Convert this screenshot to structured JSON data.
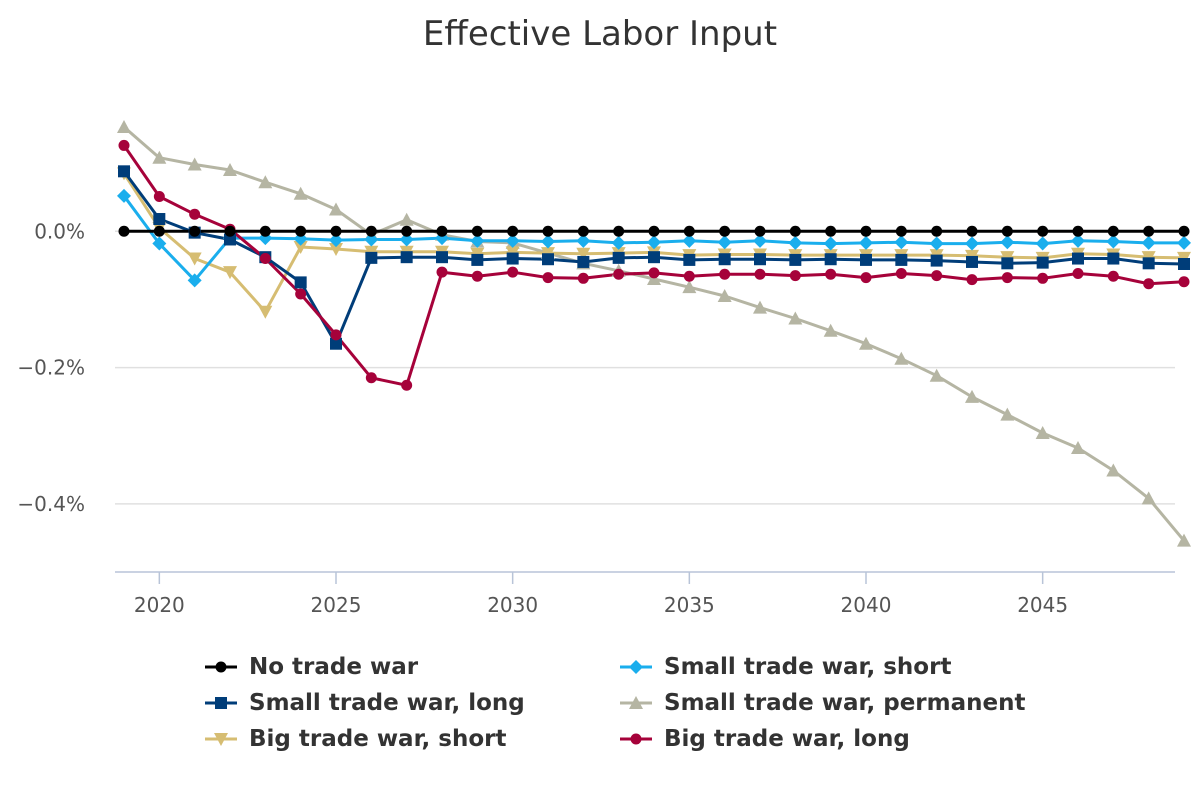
{
  "chart_data": {
    "type": "line",
    "title": "Effective Labor Input",
    "xlabel": "",
    "ylabel": "",
    "xlim": [
      2019,
      2049
    ],
    "ylim": [
      -0.5,
      0.2
    ],
    "y_ticks": [
      0.0,
      -0.2,
      -0.4
    ],
    "y_tick_labels": [
      "0.0%",
      "−0.2%",
      "−0.4%"
    ],
    "x_ticks": [
      2020,
      2025,
      2030,
      2035,
      2040,
      2045
    ],
    "x_tick_labels": [
      "2020",
      "2025",
      "2030",
      "2035",
      "2040",
      "2045"
    ],
    "x": [
      2019,
      2020,
      2021,
      2022,
      2023,
      2024,
      2025,
      2026,
      2027,
      2028,
      2029,
      2030,
      2031,
      2032,
      2033,
      2034,
      2035,
      2036,
      2037,
      2038,
      2039,
      2040,
      2041,
      2042,
      2043,
      2044,
      2045,
      2046,
      2047,
      2048,
      2049
    ],
    "series": [
      {
        "name": "No trade war",
        "color": "#000000",
        "marker": "circle",
        "values": [
          0,
          0,
          0,
          0,
          0,
          0,
          0,
          0,
          0,
          0,
          0,
          0,
          0,
          0,
          0,
          0,
          0,
          0,
          0,
          0,
          0,
          0,
          0,
          0,
          0,
          0,
          0,
          0,
          0,
          0,
          0
        ]
      },
      {
        "name": "Small trade war, short",
        "color": "#1aaeed",
        "marker": "diamond",
        "values": [
          0.052,
          -0.018,
          -0.072,
          -0.01,
          -0.01,
          -0.011,
          -0.013,
          -0.012,
          -0.012,
          -0.01,
          -0.014,
          -0.014,
          -0.015,
          -0.014,
          -0.017,
          -0.016,
          -0.014,
          -0.016,
          -0.014,
          -0.017,
          -0.018,
          -0.017,
          -0.016,
          -0.018,
          -0.018,
          -0.016,
          -0.018,
          -0.014,
          -0.015,
          -0.017,
          -0.017
        ]
      },
      {
        "name": "Small trade war, long",
        "color": "#003d79",
        "marker": "square",
        "values": [
          0.088,
          0.018,
          -0.002,
          -0.012,
          -0.038,
          -0.075,
          -0.165,
          -0.039,
          -0.038,
          -0.038,
          -0.042,
          -0.04,
          -0.041,
          -0.045,
          -0.039,
          -0.038,
          -0.042,
          -0.041,
          -0.041,
          -0.042,
          -0.041,
          -0.042,
          -0.042,
          -0.043,
          -0.045,
          -0.047,
          -0.046,
          -0.04,
          -0.04,
          -0.047,
          -0.048
        ]
      },
      {
        "name": "Small trade war, permanent",
        "color": "#b5b5a3",
        "marker": "triangle",
        "values": [
          0.153,
          0.108,
          0.098,
          0.09,
          0.072,
          0.055,
          0.032,
          -0.005,
          0.017,
          -0.005,
          -0.015,
          -0.017,
          -0.032,
          -0.047,
          -0.058,
          -0.07,
          -0.082,
          -0.095,
          -0.112,
          -0.128,
          -0.146,
          -0.165,
          -0.187,
          -0.212,
          -0.243,
          -0.269,
          -0.296,
          -0.318,
          -0.351,
          -0.392,
          -0.454
        ]
      },
      {
        "name": "Big trade war, short",
        "color": "#d6bd72",
        "marker": "triangle-down",
        "values": [
          0.085,
          0.005,
          -0.04,
          -0.06,
          -0.118,
          -0.023,
          -0.026,
          -0.03,
          -0.03,
          -0.03,
          -0.033,
          -0.031,
          -0.032,
          -0.033,
          -0.032,
          -0.031,
          -0.035,
          -0.034,
          -0.034,
          -0.035,
          -0.035,
          -0.035,
          -0.035,
          -0.035,
          -0.036,
          -0.038,
          -0.039,
          -0.033,
          -0.034,
          -0.038,
          -0.039
        ]
      },
      {
        "name": "Big trade war, long",
        "color": "#a6023a",
        "marker": "circle",
        "values": [
          0.126,
          0.051,
          0.025,
          0.003,
          -0.04,
          -0.092,
          -0.152,
          -0.215,
          -0.226,
          -0.06,
          -0.066,
          -0.06,
          -0.068,
          -0.069,
          -0.063,
          -0.061,
          -0.066,
          -0.063,
          -0.063,
          -0.065,
          -0.063,
          -0.068,
          -0.062,
          -0.065,
          -0.071,
          -0.068,
          -0.069,
          -0.062,
          -0.066,
          -0.077,
          -0.074
        ]
      }
    ],
    "legend_position": "bottom"
  }
}
